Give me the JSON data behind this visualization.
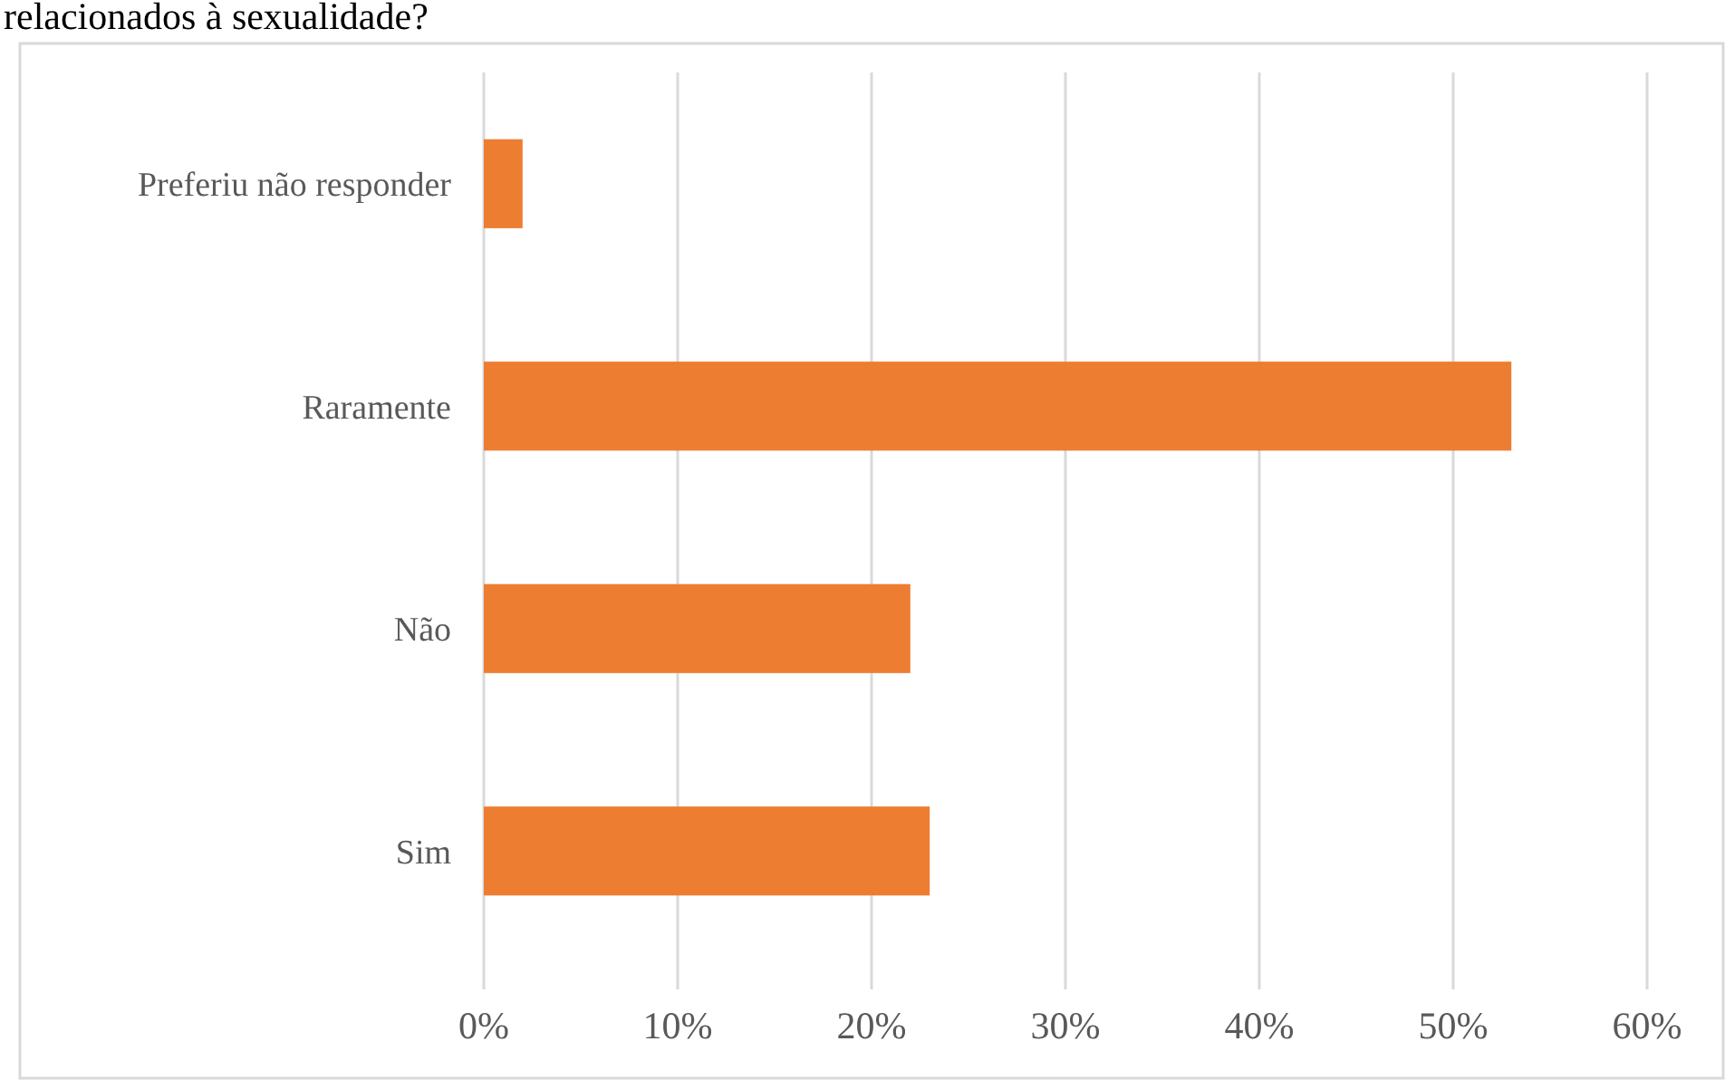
{
  "chart_data": {
    "type": "bar",
    "orientation": "horizontal",
    "title": "relacionados à sexualidade?",
    "categories": [
      "Preferiu não responder",
      "Raramente",
      "Não",
      "Sim"
    ],
    "values": [
      2,
      53,
      22,
      23
    ],
    "color": "#ed7d31",
    "xlim": [
      0,
      60
    ],
    "xticks": [
      {
        "value": 0,
        "label": "0%"
      },
      {
        "value": 10,
        "label": "10%"
      },
      {
        "value": 20,
        "label": "20%"
      },
      {
        "value": 30,
        "label": "30%"
      },
      {
        "value": 40,
        "label": "40%"
      },
      {
        "value": 50,
        "label": "50%"
      },
      {
        "value": 60,
        "label": "60%"
      }
    ],
    "grid": "x"
  }
}
